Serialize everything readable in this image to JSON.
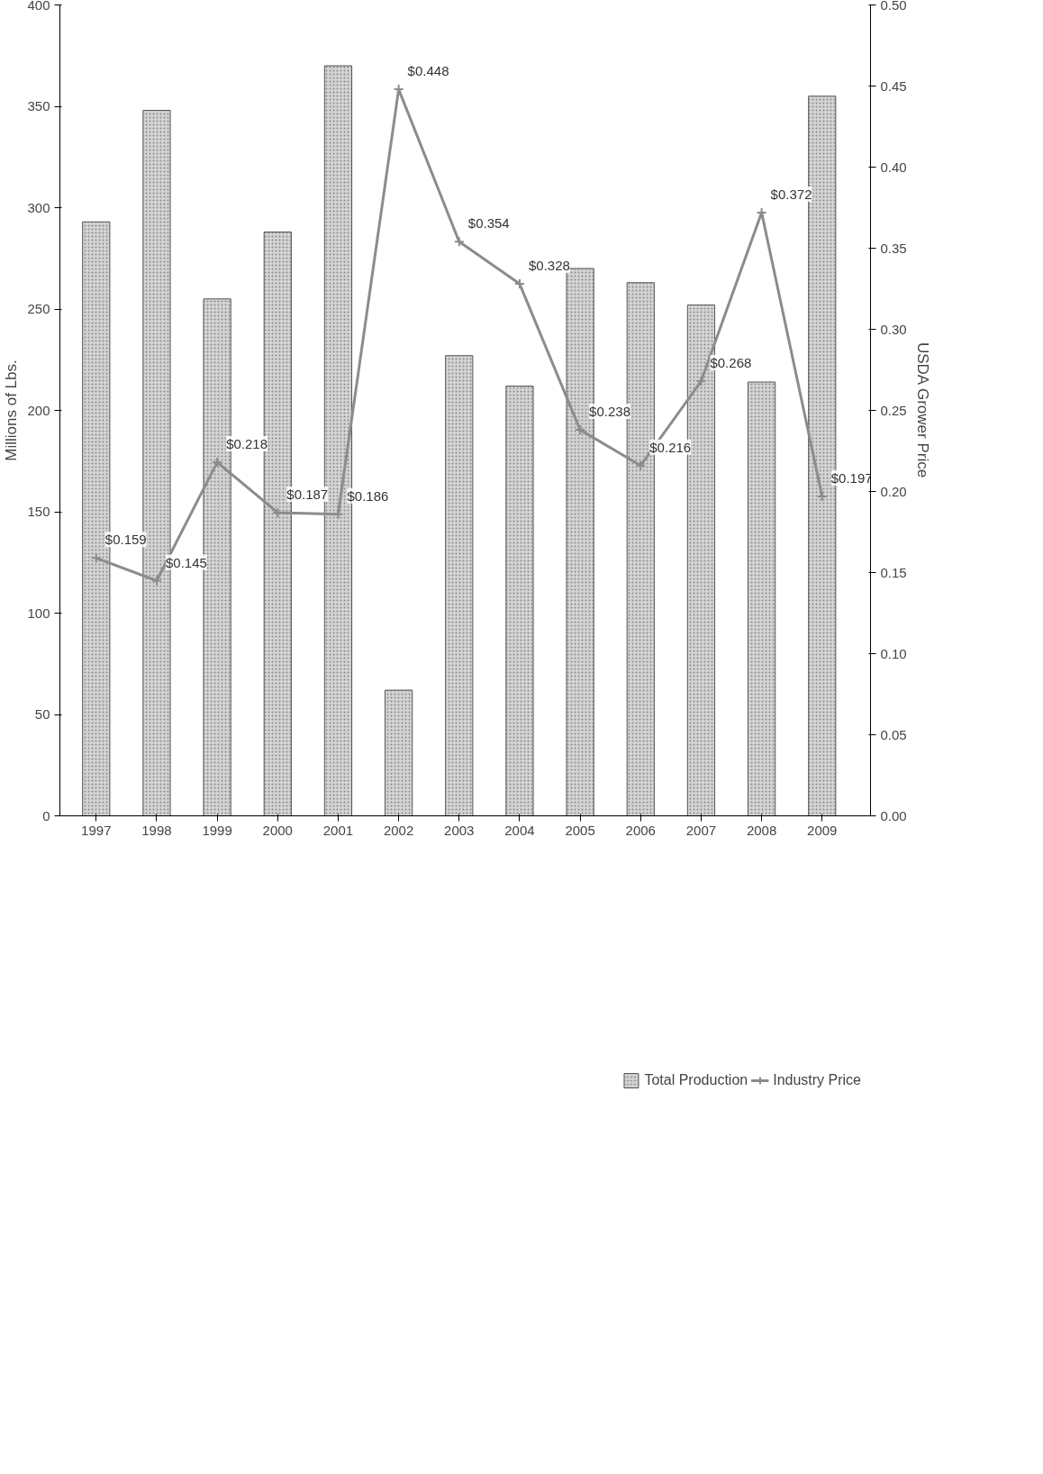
{
  "chart_data": {
    "type": "bar",
    "categories": [
      "1997",
      "1998",
      "1999",
      "2000",
      "2001",
      "2002",
      "2003",
      "2004",
      "2005",
      "2006",
      "2007",
      "2008",
      "2009"
    ],
    "ylabel": "Millions of Lbs.",
    "y2label": "USDA Grower Price",
    "ylim": [
      0,
      400
    ],
    "yticks": [
      0,
      50,
      100,
      150,
      200,
      250,
      300,
      350,
      400
    ],
    "y2lim": [
      0,
      0.5
    ],
    "y2ticks": [
      {
        "value": 0,
        "label": "0.00"
      },
      {
        "value": 0.05,
        "label": "0.05"
      },
      {
        "value": 0.1,
        "label": "0.10"
      },
      {
        "value": 0.15,
        "label": "0.15"
      },
      {
        "value": 0.2,
        "label": "0.20"
      },
      {
        "value": 0.25,
        "label": "0.25"
      },
      {
        "value": 0.3,
        "label": "0.30"
      },
      {
        "value": 0.35,
        "label": "0.35"
      },
      {
        "value": 0.4,
        "label": "0.40"
      },
      {
        "value": 0.45,
        "label": "0.45"
      },
      {
        "value": 0.5,
        "label": "0.50"
      }
    ],
    "grid": false,
    "legend": "bottom",
    "series": [
      {
        "name": "Total Production",
        "color": "#d4d4d4",
        "values": [
          293,
          348,
          255,
          288,
          370,
          62,
          227,
          212,
          270,
          263,
          252,
          214,
          355
        ]
      },
      {
        "name": "Industry Price",
        "type": "line",
        "axis": "y2",
        "color": "#8c8c8c",
        "marker": "cross",
        "line_style": "solid",
        "values": [
          0.159,
          0.145,
          0.218,
          0.187,
          0.186,
          0.448,
          0.354,
          0.328,
          0.238,
          0.216,
          0.268,
          0.372,
          0.197
        ],
        "value_labels": [
          "$0.159",
          "$0.145",
          "$0.218",
          "$0.187",
          "$0.186",
          "$0.448",
          "$0.354",
          "$0.328",
          "$0.238",
          "$0.216",
          "$0.268",
          "$0.372",
          "$0.197"
        ]
      }
    ]
  }
}
